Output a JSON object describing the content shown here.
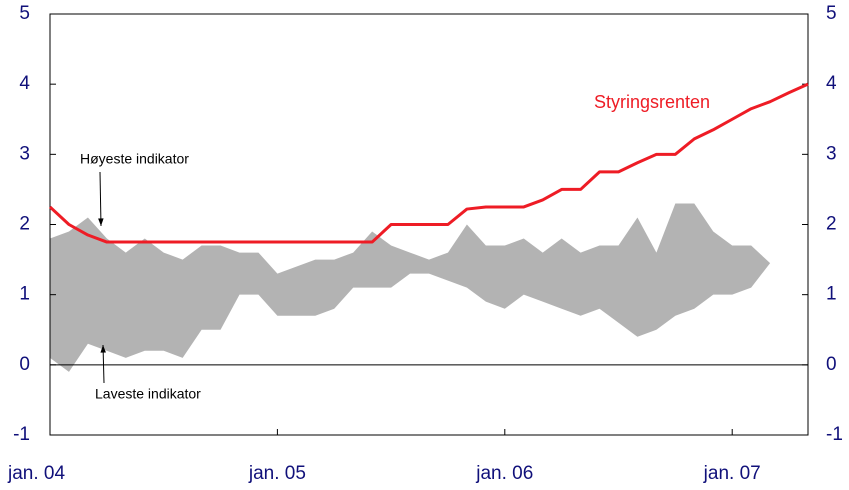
{
  "chart_data": {
    "type": "line",
    "categories": [
      "jan. 04",
      null,
      null,
      null,
      null,
      null,
      null,
      null,
      null,
      null,
      null,
      null,
      "jan. 05",
      null,
      null,
      null,
      null,
      null,
      null,
      null,
      null,
      null,
      null,
      null,
      "jan. 06",
      null,
      null,
      null,
      null,
      null,
      null,
      null,
      null,
      null,
      null,
      null,
      "jan. 07",
      null,
      null,
      null,
      null
    ],
    "series": [
      {
        "name": "Høyeste indikator",
        "color": "#b3b3b3",
        "kind": "band-upper",
        "values": [
          1.8,
          1.9,
          2.1,
          1.8,
          1.6,
          1.8,
          1.6,
          1.5,
          1.7,
          1.7,
          1.6,
          1.6,
          1.3,
          1.4,
          1.5,
          1.5,
          1.6,
          1.9,
          1.7,
          1.6,
          1.5,
          1.6,
          2.0,
          1.7,
          1.7,
          1.8,
          1.6,
          1.8,
          1.6,
          1.7,
          1.7,
          2.1,
          1.6,
          2.3,
          2.3,
          1.9,
          1.7,
          1.7,
          1.45,
          null,
          null
        ]
      },
      {
        "name": "Laveste indikator",
        "color": "#b3b3b3",
        "kind": "band-lower",
        "values": [
          0.1,
          -0.1,
          0.3,
          0.2,
          0.1,
          0.2,
          0.2,
          0.1,
          0.5,
          0.5,
          1.0,
          1.0,
          0.7,
          0.7,
          0.7,
          0.8,
          1.1,
          1.1,
          1.1,
          1.3,
          1.3,
          1.2,
          1.1,
          0.9,
          0.8,
          1.0,
          0.9,
          0.8,
          0.7,
          0.8,
          0.6,
          0.4,
          0.5,
          0.7,
          0.8,
          1.0,
          1.0,
          1.1,
          1.45,
          null,
          null
        ]
      },
      {
        "name": "Styringsrenten",
        "color": "#ee1c25",
        "kind": "line",
        "values": [
          2.25,
          2.0,
          1.85,
          1.75,
          1.75,
          1.75,
          1.75,
          1.75,
          1.75,
          1.75,
          1.75,
          1.75,
          1.75,
          1.75,
          1.75,
          1.75,
          1.75,
          1.75,
          2.0,
          2.0,
          2.0,
          2.0,
          2.22,
          2.25,
          2.25,
          2.25,
          2.35,
          2.5,
          2.5,
          2.75,
          2.75,
          2.88,
          3.0,
          3.0,
          3.22,
          3.35,
          3.5,
          3.65,
          3.75,
          3.88,
          4.0
        ]
      }
    ],
    "ylim": [
      -1,
      5
    ],
    "yticks": [
      -1,
      0,
      1,
      2,
      3,
      4,
      5
    ],
    "y2lim": [
      -1,
      5
    ],
    "y2ticks": [
      -1,
      0,
      1,
      2,
      3,
      4,
      5
    ]
  }
}
